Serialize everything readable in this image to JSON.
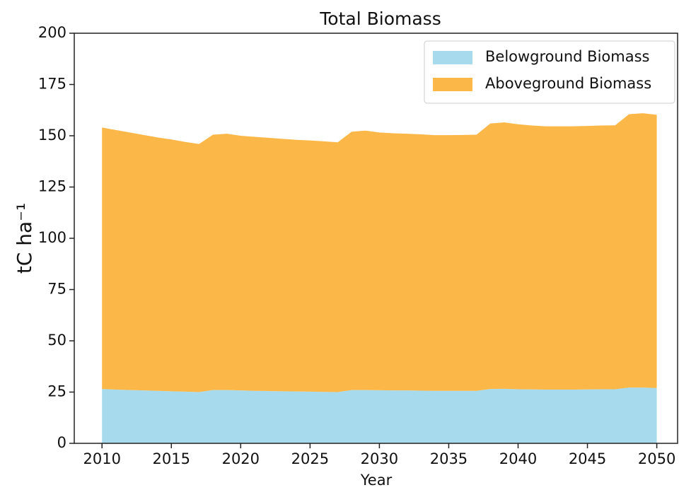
{
  "chart_data": {
    "type": "area",
    "stacked": true,
    "title": "Total Biomass",
    "xlabel": "Year",
    "ylabel": "tC ha⁻¹",
    "x": [
      2010,
      2011,
      2012,
      2013,
      2014,
      2015,
      2016,
      2017,
      2018,
      2019,
      2020,
      2021,
      2022,
      2023,
      2024,
      2025,
      2026,
      2027,
      2028,
      2029,
      2030,
      2031,
      2032,
      2033,
      2034,
      2035,
      2036,
      2037,
      2038,
      2039,
      2040,
      2041,
      2042,
      2043,
      2044,
      2045,
      2046,
      2047,
      2048,
      2049,
      2050
    ],
    "series": [
      {
        "name": "Belowground Biomass",
        "color": "#a8daed",
        "values": [
          26.5,
          26.2,
          26,
          25.8,
          25.6,
          25.4,
          25.2,
          25,
          26,
          26,
          25.8,
          25.6,
          25.5,
          25.4,
          25.3,
          25.2,
          25.1,
          25,
          26,
          26,
          25.9,
          25.8,
          25.8,
          25.7,
          25.6,
          25.6,
          25.6,
          25.6,
          26.5,
          26.6,
          26.4,
          26.3,
          26.2,
          26.2,
          26.2,
          26.3,
          26.4,
          26.4,
          27.2,
          27.2,
          27
        ]
      },
      {
        "name": "Aboveground Biomass",
        "color": "#fbb848",
        "values": [
          127.5,
          126.6,
          125.6,
          124.6,
          123.6,
          122.8,
          121.8,
          121,
          124.5,
          125,
          124.2,
          123.9,
          123.5,
          123.1,
          122.7,
          122.5,
          122.2,
          121.8,
          126,
          126.5,
          125.7,
          125.4,
          125.2,
          125,
          124.7,
          124.7,
          124.8,
          124.9,
          129.5,
          129.9,
          129.2,
          128.7,
          128.4,
          128.4,
          128.4,
          128.5,
          128.6,
          128.7,
          133.3,
          133.8,
          133.2
        ]
      }
    ],
    "xlim": [
      2008,
      2051.5
    ],
    "xticks": [
      2010,
      2015,
      2020,
      2025,
      2030,
      2035,
      2040,
      2045,
      2050
    ],
    "ylim": [
      0,
      200
    ],
    "yticks": [
      0,
      25,
      50,
      75,
      100,
      125,
      150,
      175,
      200
    ],
    "grid": false,
    "legend": "upper right"
  }
}
